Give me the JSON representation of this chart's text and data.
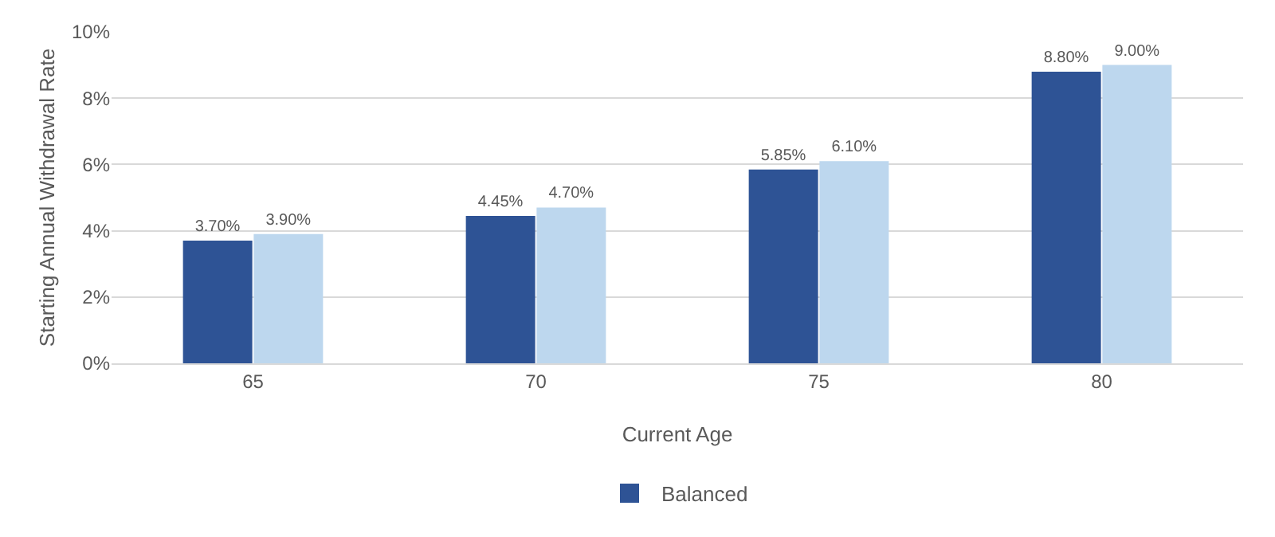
{
  "chart_data": {
    "type": "bar",
    "xlabel": "Current Age",
    "ylabel": "Starting Annual Withdrawal Rate",
    "categories": [
      "65",
      "70",
      "75",
      "80"
    ],
    "series": [
      {
        "name": "Balanced",
        "color": "#2e5395",
        "values": [
          3.7,
          4.45,
          5.85,
          8.8
        ],
        "value_labels": [
          "3.70%",
          "4.45%",
          "5.85%",
          "8.80%"
        ]
      },
      {
        "color": "#bdd7ee",
        "values": [
          3.9,
          4.7,
          6.1,
          9.0
        ],
        "value_labels": [
          "3.90%",
          "4.70%",
          "6.10%",
          "9.00%"
        ]
      }
    ],
    "ylim": [
      0,
      10
    ],
    "yticks": [
      {
        "value": 0,
        "label": "0%"
      },
      {
        "value": 2,
        "label": "2%"
      },
      {
        "value": 4,
        "label": "4%"
      },
      {
        "value": 6,
        "label": "6%"
      },
      {
        "value": 8,
        "label": "8%"
      },
      {
        "value": 10,
        "label": "10%"
      }
    ],
    "grid": "y",
    "legend": "bottom"
  }
}
